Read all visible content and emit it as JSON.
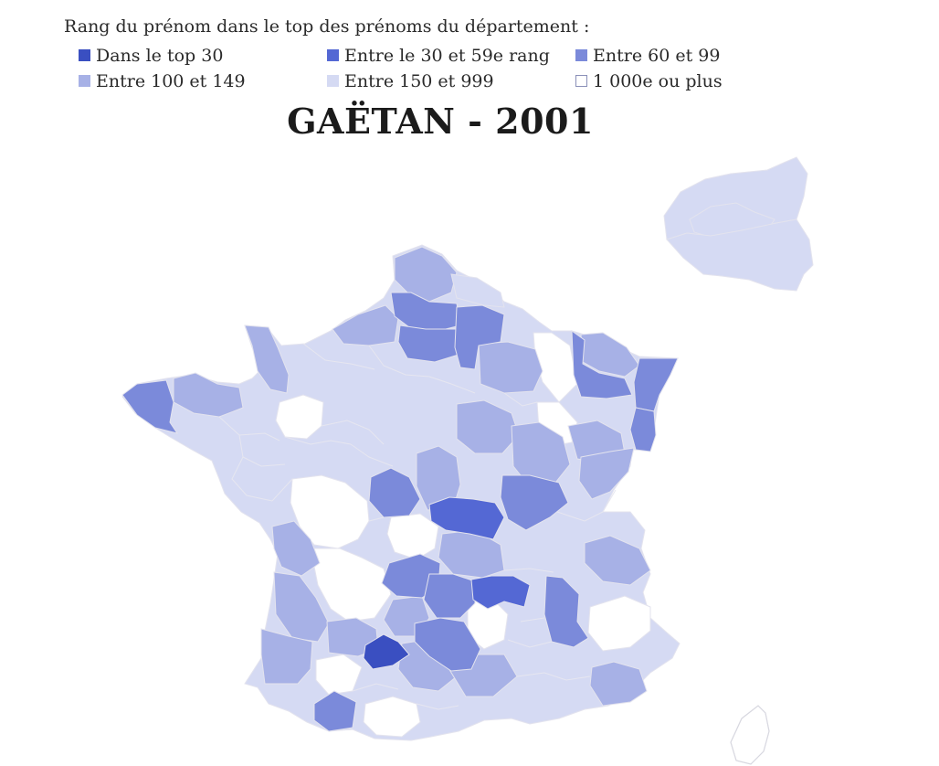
{
  "legend": {
    "title": "Rang du prénom dans le top des prénoms du département :",
    "items": [
      {
        "label": "Dans le top 30",
        "color": "#3a4fc1"
      },
      {
        "label": "Entre le 30 et 59e rang",
        "color": "#5468d4"
      },
      {
        "label": "Entre 60 et 99",
        "color": "#7b8ada"
      },
      {
        "label": "Entre 100 et 149",
        "color": "#a7b1e6"
      },
      {
        "label": "Entre 150 et 999",
        "color": "#d5daf3"
      },
      {
        "label": "1 000e ou plus",
        "color": "#ffffff"
      }
    ]
  },
  "map": {
    "title": "GAËTAN - 2001",
    "name": "Gaëtan",
    "year": 2001
  }
}
